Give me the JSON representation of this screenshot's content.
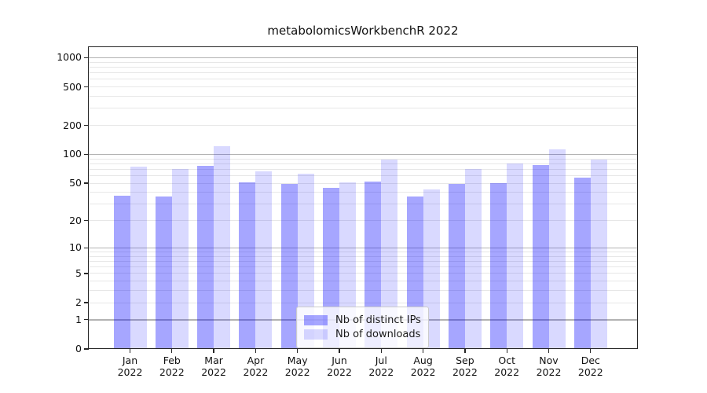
{
  "title": "metabolomicsWorkbenchR 2022",
  "chart_data": {
    "type": "bar",
    "title": "metabolomicsWorkbenchR 2022",
    "xlabel": "",
    "ylabel": "",
    "categories": [
      "Jan",
      "Feb",
      "Mar",
      "Apr",
      "May",
      "Jun",
      "Jul",
      "Aug",
      "Sep",
      "Oct",
      "Nov",
      "Dec"
    ],
    "x_tick_second_line": "2022",
    "series": [
      {
        "name": "Nb of distinct IPs",
        "color": "#a6a6ff",
        "rgba": "rgba(0,0,255,0.35)",
        "values": [
          37,
          36,
          76,
          51,
          49,
          45,
          52,
          36,
          49,
          50,
          78,
          57
        ]
      },
      {
        "name": "Nb of downloads",
        "color": "#d9d9ff",
        "rgba": "rgba(0,0,255,0.15)",
        "values": [
          74,
          70,
          122,
          66,
          63,
          51,
          88,
          43,
          71,
          81,
          112,
          88
        ]
      }
    ],
    "yscale": "log1p",
    "ylim": [
      0,
      1285
    ],
    "y_ticks": [
      1000,
      500,
      200,
      100,
      50,
      20,
      10,
      5,
      2,
      1,
      0
    ],
    "grid": {
      "major": [
        1,
        10,
        100,
        1000
      ],
      "minor": [
        2,
        3,
        4,
        5,
        6,
        7,
        8,
        9,
        20,
        30,
        40,
        50,
        60,
        70,
        80,
        90,
        200,
        300,
        400,
        500,
        600,
        700,
        800,
        900
      ],
      "major_color": "#b3b3b3",
      "minor_color": "#e7e7e7"
    },
    "legend_position": "lower center",
    "axis_color": "#262626"
  }
}
